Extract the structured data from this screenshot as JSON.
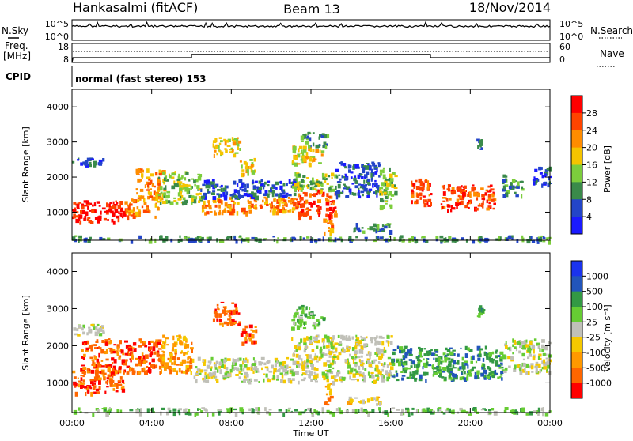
{
  "header": {
    "station": "Hankasalmi (fitACF)",
    "beam": "Beam 13",
    "date": "18/Nov/2014"
  },
  "status_panels": {
    "nsky_label": "N.Sky",
    "nsearch_label": "N.Search",
    "freq_label_line1": "Freq.",
    "freq_label_line2": "[MHz]",
    "nave_label": "Nave",
    "cpid_label": "CPID",
    "noise_ticks": {
      "top": "10^5",
      "bottom": "10^0"
    },
    "freq_ticks": [
      "18",
      "8"
    ],
    "nave_ticks": [
      "60",
      "0"
    ],
    "cpid_text": "normal (fast stereo) 153",
    "noise_level": 0.68,
    "freq_hours": [
      0,
      0.05,
      6,
      6,
      18,
      18,
      24
    ],
    "freq_values": [
      8,
      10.5,
      10.5,
      12.2,
      12.2,
      10.5,
      10.5
    ]
  },
  "colors": {
    "power": [
      "#1a1aff",
      "#2345c8",
      "#3a8a4a",
      "#7ccd3c",
      "#f5c400",
      "#ff8c00",
      "#ff4400",
      "#ff0000"
    ],
    "velocity": [
      "#ff0000",
      "#ff6600",
      "#ff9900",
      "#f5c800",
      "#c0c0b8",
      "#66cc33",
      "#339944",
      "#2255bb",
      "#1a33ee"
    ]
  },
  "chart_data": [
    {
      "type": "heatmap",
      "name": "Power",
      "ylabel": "Slant Range [km]",
      "colorbar_label": "Power [dB]",
      "colorbar_ticks": [
        "4",
        "8",
        "12",
        "16",
        "20",
        "24",
        "28"
      ],
      "xlim": [
        "00:00",
        "24:00"
      ],
      "ylim": [
        200,
        4500
      ],
      "yticks": [
        "1000",
        "2000",
        "3000",
        "4000"
      ],
      "xticks": [
        "00:00",
        "04:00",
        "08:00",
        "12:00",
        "16:00",
        "20:00",
        "00:00"
      ],
      "regions": [
        {
          "t0": 0.0,
          "t1": 2.6,
          "r0": 750,
          "r1": 1350,
          "level": 7
        },
        {
          "t0": 2.6,
          "t1": 4.3,
          "r0": 900,
          "r1": 1400,
          "level": 5
        },
        {
          "t0": 3.2,
          "t1": 4.6,
          "r0": 1400,
          "r1": 2300,
          "level": 5
        },
        {
          "t0": 4.3,
          "t1": 6.4,
          "r0": 1300,
          "r1": 2200,
          "level": 3
        },
        {
          "t0": 6.4,
          "t1": 11.2,
          "r0": 1000,
          "r1": 1450,
          "level": 5
        },
        {
          "t0": 6.4,
          "t1": 11.2,
          "r0": 1450,
          "r1": 1950,
          "level": 1
        },
        {
          "t0": 11.2,
          "t1": 13.2,
          "r0": 900,
          "r1": 1650,
          "level": 6
        },
        {
          "t0": 11.0,
          "t1": 13.3,
          "r0": 1650,
          "r1": 2150,
          "level": 3
        },
        {
          "t0": 12.6,
          "t1": 13.0,
          "r0": 400,
          "r1": 900,
          "level": 5
        },
        {
          "t0": 11.0,
          "t1": 12.6,
          "r0": 2400,
          "r1": 2900,
          "level": 4
        },
        {
          "t0": 11.4,
          "t1": 12.8,
          "r0": 2900,
          "r1": 3300,
          "level": 2
        },
        {
          "t0": 7.0,
          "t1": 8.4,
          "r0": 2600,
          "r1": 3150,
          "level": 4
        },
        {
          "t0": 8.4,
          "t1": 9.2,
          "r0": 2100,
          "r1": 2550,
          "level": 4
        },
        {
          "t0": 13.2,
          "t1": 15.4,
          "r0": 1450,
          "r1": 2450,
          "level": 1
        },
        {
          "t0": 15.4,
          "t1": 16.2,
          "r0": 1100,
          "r1": 2300,
          "level": 3
        },
        {
          "t0": 14.0,
          "t1": 16.0,
          "r0": 450,
          "r1": 700,
          "level": 2
        },
        {
          "t0": 0.0,
          "t1": 1.6,
          "r0": 2350,
          "r1": 2600,
          "level": 1
        },
        {
          "t0": 17.0,
          "t1": 18.0,
          "r0": 1200,
          "r1": 2000,
          "level": 6
        },
        {
          "t0": 18.5,
          "t1": 21.2,
          "r0": 1100,
          "r1": 1800,
          "level": 6
        },
        {
          "t0": 21.6,
          "t1": 22.6,
          "r0": 1500,
          "r1": 2100,
          "level": 2
        },
        {
          "t0": 23.0,
          "t1": 24.0,
          "r0": 1800,
          "r1": 2300,
          "level": 1
        },
        {
          "t0": 20.3,
          "t1": 20.6,
          "r0": 2800,
          "r1": 3100,
          "level": 1
        },
        {
          "t0": 0.0,
          "t1": 24.0,
          "r0": 200,
          "r1": 350,
          "level": 2
        }
      ]
    },
    {
      "type": "heatmap",
      "name": "Velocity",
      "ylabel": "Slant Range [km]",
      "colorbar_label": "Velocity [m s⁻¹]",
      "colorbar_ticks": [
        "1000",
        "500",
        "100",
        "25",
        "-25",
        "-100",
        "-500",
        "-1000"
      ],
      "xlim": [
        "00:00",
        "24:00"
      ],
      "ylim": [
        200,
        4500
      ],
      "yticks": [
        "1000",
        "2000",
        "3000",
        "4000"
      ],
      "xticks": [
        "00:00",
        "04:00",
        "08:00",
        "12:00",
        "16:00",
        "20:00",
        "00:00"
      ],
      "xlabel": "Time UT",
      "regions": [
        {
          "t0": 0.0,
          "t1": 2.6,
          "r0": 750,
          "r1": 1400,
          "level": 1
        },
        {
          "t0": 0.4,
          "t1": 4.4,
          "r0": 1300,
          "r1": 2200,
          "level": 1
        },
        {
          "t0": 4.4,
          "t1": 6.0,
          "r0": 1300,
          "r1": 2300,
          "level": 2
        },
        {
          "t0": 6.0,
          "t1": 16.0,
          "r0": 1050,
          "r1": 1700,
          "level": 4
        },
        {
          "t0": 11.0,
          "t1": 16.0,
          "r0": 1700,
          "r1": 2300,
          "level": 4
        },
        {
          "t0": 12.6,
          "t1": 13.0,
          "r0": 400,
          "r1": 1000,
          "level": 2
        },
        {
          "t0": 13.8,
          "t1": 15.6,
          "r0": 450,
          "r1": 650,
          "level": 3
        },
        {
          "t0": 16.0,
          "t1": 21.6,
          "r0": 1100,
          "r1": 2000,
          "level": 6
        },
        {
          "t0": 21.6,
          "t1": 24.0,
          "r0": 1300,
          "r1": 2200,
          "level": 4
        },
        {
          "t0": 7.0,
          "t1": 8.4,
          "r0": 2600,
          "r1": 3200,
          "level": 1
        },
        {
          "t0": 8.4,
          "t1": 9.2,
          "r0": 2100,
          "r1": 2600,
          "level": 1
        },
        {
          "t0": 11.0,
          "t1": 12.6,
          "r0": 2500,
          "r1": 3100,
          "level": 5
        },
        {
          "t0": 0.0,
          "t1": 1.6,
          "r0": 2300,
          "r1": 2600,
          "level": 4
        },
        {
          "t0": 0.0,
          "t1": 24.0,
          "r0": 200,
          "r1": 350,
          "level": 5
        },
        {
          "t0": 20.3,
          "t1": 20.6,
          "r0": 2800,
          "r1": 3100,
          "level": 6
        }
      ]
    }
  ]
}
